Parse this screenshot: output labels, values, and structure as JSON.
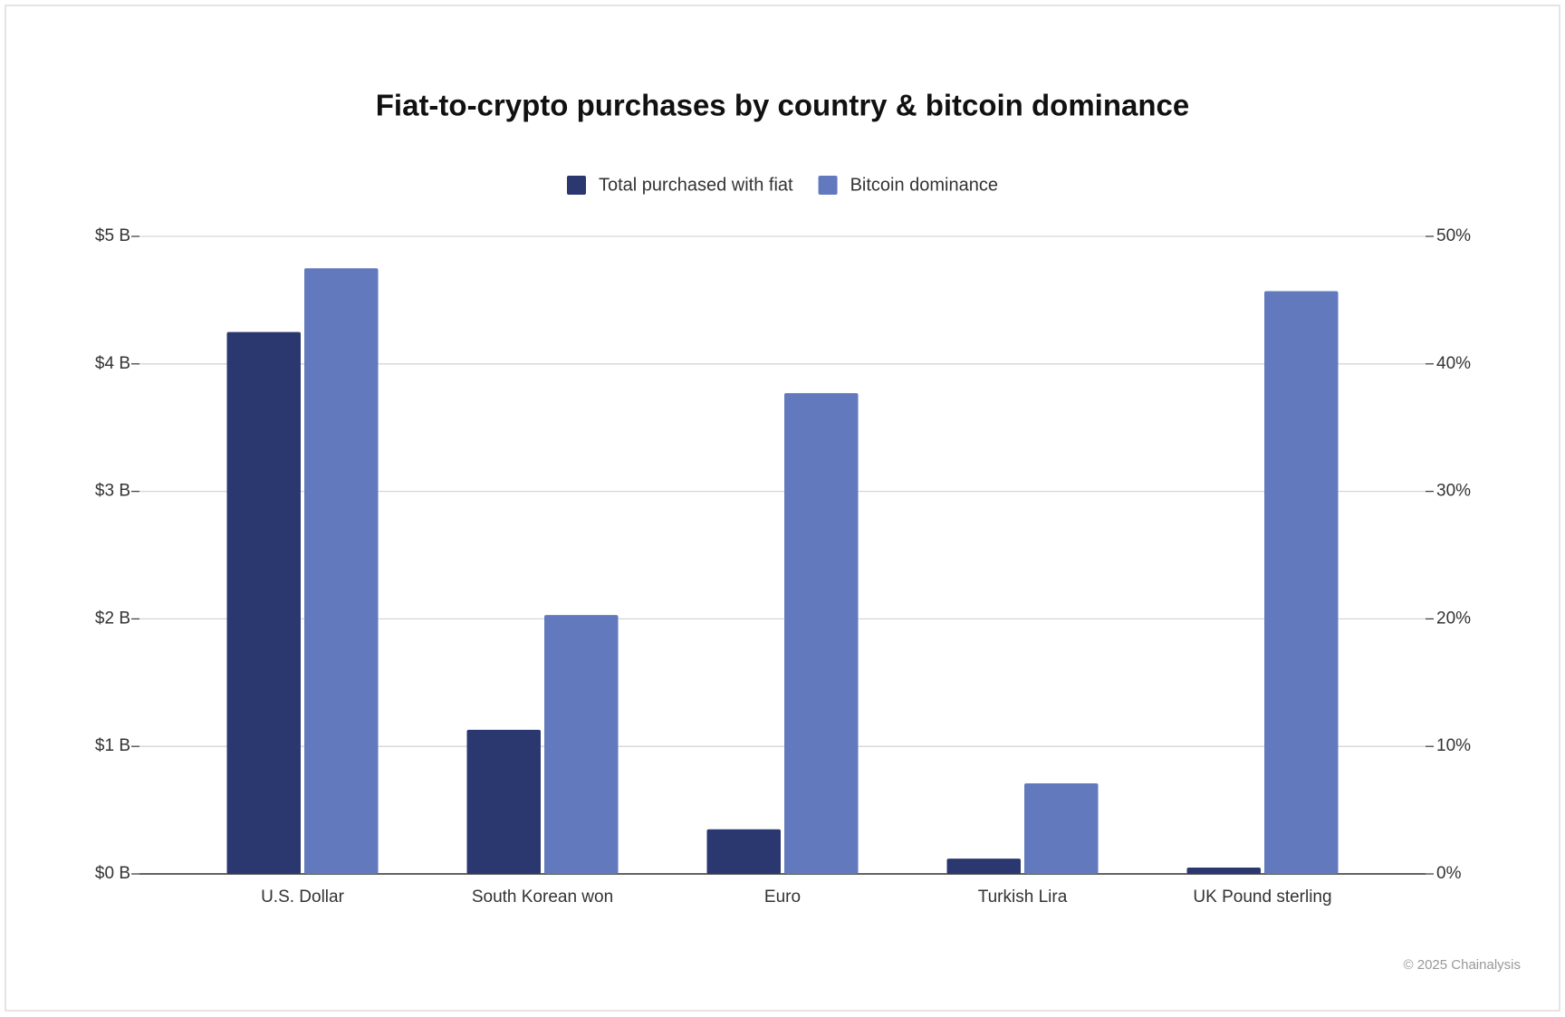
{
  "chart_data": {
    "type": "bar",
    "title": "Fiat-to-crypto purchases by country & bitcoin dominance",
    "categories": [
      "U.S. Dollar",
      "South Korean won",
      "Euro",
      "Turkish Lira",
      "UK Pound sterling"
    ],
    "series": [
      {
        "name": "Total purchased with fiat",
        "color": "#2b3870",
        "values": [
          4.25,
          1.13,
          0.35,
          0.12,
          0.05
        ]
      },
      {
        "name": "Bitcoin dominance",
        "color": "#6379bd",
        "axis": "y2",
        "values": [
          47.5,
          20.3,
          37.7,
          7.1,
          45.7
        ]
      }
    ],
    "ylim": [
      0,
      5
    ],
    "yticks": [
      {
        "value": 0,
        "label": "$0 B"
      },
      {
        "value": 1,
        "label": "$1 B"
      },
      {
        "value": 2,
        "label": "$2 B"
      },
      {
        "value": 3,
        "label": "$3 B"
      },
      {
        "value": 4,
        "label": "$4 B"
      },
      {
        "value": 5,
        "label": "$5 B"
      }
    ],
    "y2lim": [
      0,
      50
    ],
    "y2ticks": [
      {
        "value": 0,
        "label": "0%"
      },
      {
        "value": 10,
        "label": "10%"
      },
      {
        "value": 20,
        "label": "20%"
      },
      {
        "value": 30,
        "label": "30%"
      },
      {
        "value": 40,
        "label": "40%"
      },
      {
        "value": 50,
        "label": "50%"
      }
    ],
    "grid": true,
    "legend": "top",
    "source": "© 2025 Chainalysis"
  }
}
